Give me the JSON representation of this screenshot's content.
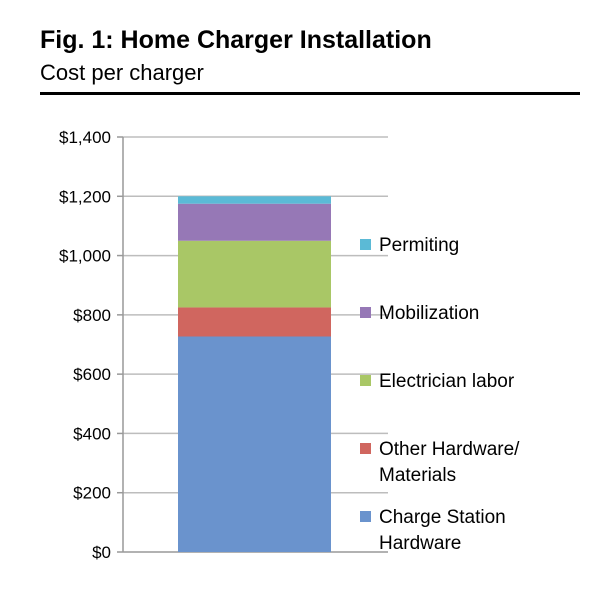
{
  "header": {
    "title": "Fig. 1: Home Charger Installation",
    "subtitle": "Cost per charger"
  },
  "chart_data": {
    "type": "bar",
    "stacked": true,
    "categories": [
      ""
    ],
    "ylim": [
      0,
      1400
    ],
    "yticks": [
      {
        "value": 0,
        "label": "$0"
      },
      {
        "value": 200,
        "label": "$200"
      },
      {
        "value": 400,
        "label": "$400"
      },
      {
        "value": 600,
        "label": "$600"
      },
      {
        "value": 800,
        "label": "$800"
      },
      {
        "value": 1000,
        "label": "$1,000"
      },
      {
        "value": 1200,
        "label": "$1,200"
      },
      {
        "value": 1400,
        "label": "$1,400"
      }
    ],
    "grid": true,
    "legend_position": "right",
    "series": [
      {
        "name": "Charge Station Hardware",
        "label_lines": [
          "Charge Station",
          "Hardware"
        ],
        "values": [
          727
        ],
        "color": "#6a93cd"
      },
      {
        "name": "Other Hardware/ Materials",
        "label_lines": [
          "Other Hardware/",
          "Materials"
        ],
        "values": [
          98
        ],
        "color": "#d0665f"
      },
      {
        "name": "Electrician labor",
        "label_lines": [
          "Electrician labor"
        ],
        "values": [
          225
        ],
        "color": "#a9c766"
      },
      {
        "name": "Mobilization",
        "label_lines": [
          "Mobilization"
        ],
        "values": [
          125
        ],
        "color": "#9678b6"
      },
      {
        "name": "Permiting",
        "label_lines": [
          "Permiting"
        ],
        "values": [
          25
        ],
        "color": "#5bbad6"
      }
    ]
  }
}
